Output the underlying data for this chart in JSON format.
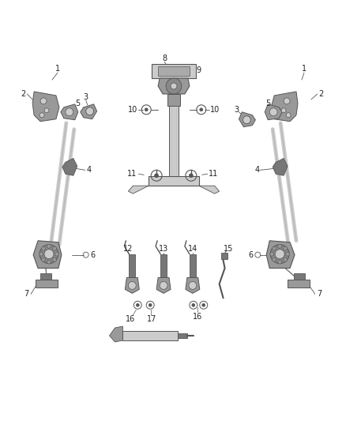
{
  "bg_color": "#ffffff",
  "line_color": "#444444",
  "text_color": "#222222",
  "figsize": [
    4.38,
    5.33
  ],
  "dpi": 100,
  "lc": "#555555",
  "part_gray": "#999999",
  "part_light": "#cccccc",
  "part_dark": "#777777"
}
